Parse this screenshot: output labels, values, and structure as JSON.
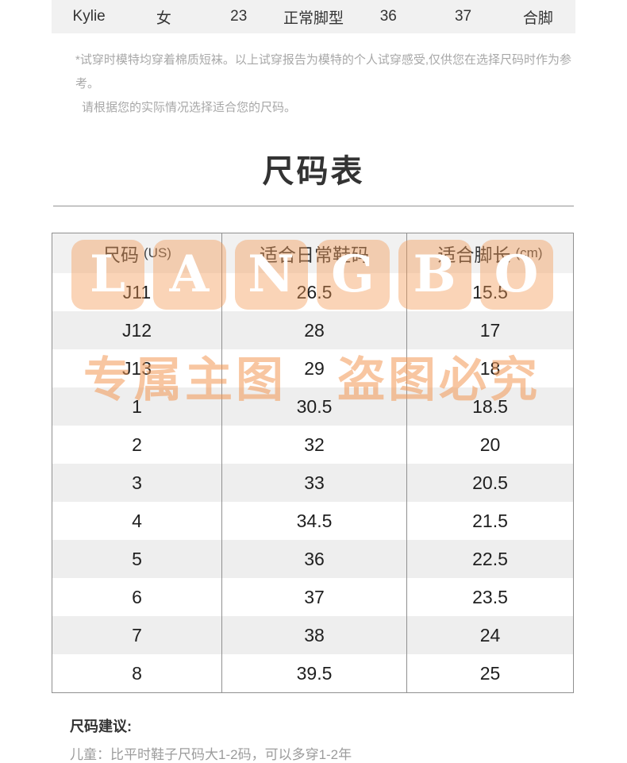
{
  "fit_report": {
    "values": [
      "Kylie",
      "女",
      "23",
      "正常脚型",
      "36",
      "37",
      "合脚"
    ]
  },
  "disclaimer": {
    "line1": "*试穿时模特均穿着棉质短袜。以上试穿报告为模特的个人试穿感受,仅供您在选择尺码时作为参考。",
    "line2": "请根据您的实际情况选择适合您的尺码。"
  },
  "section_title": "尺码表",
  "size_table": {
    "headers": [
      {
        "main": "尺码",
        "unit": "(US)"
      },
      {
        "main": "适合日常鞋码",
        "unit": ""
      },
      {
        "main": "适合脚长",
        "unit": "(cm)"
      }
    ],
    "rows": [
      [
        "J11",
        "26.5",
        "15.5"
      ],
      [
        "J12",
        "28",
        "17"
      ],
      [
        "J13",
        "29",
        "18"
      ],
      [
        "1",
        "30.5",
        "18.5"
      ],
      [
        "2",
        "32",
        "20"
      ],
      [
        "3",
        "33",
        "20.5"
      ],
      [
        "4",
        "34.5",
        "21.5"
      ],
      [
        "5",
        "36",
        "22.5"
      ],
      [
        "6",
        "37",
        "23.5"
      ],
      [
        "7",
        "38",
        "24"
      ],
      [
        "8",
        "39.5",
        "25"
      ]
    ]
  },
  "watermark": {
    "letters": [
      "L",
      "A",
      "N",
      "G",
      "B",
      "O"
    ],
    "text": "专属主图　盗图必究",
    "color": "#F29854"
  },
  "suggestion": {
    "title": "尺码建议:",
    "body": "儿童：比平时鞋子尺码大1-2码，可以多穿1-2年"
  },
  "colors": {
    "stripe": "#eeeeee",
    "band": "#f1f1f1",
    "table_border": "#909090",
    "muted_text": "#a8a8a8"
  }
}
